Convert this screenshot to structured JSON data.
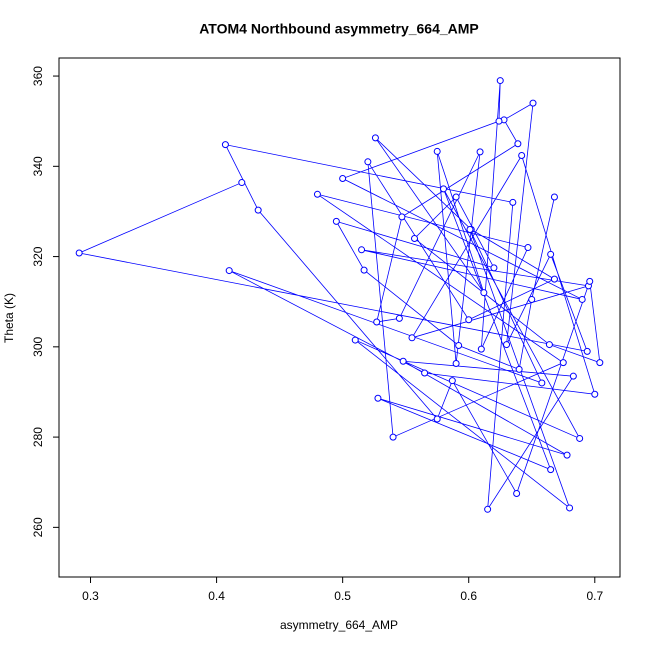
{
  "chart_data": {
    "type": "scatter",
    "connected": true,
    "title": "ATOM4 Northbound asymmetry_664_AMP",
    "xlabel": "asymmetry_664_AMP",
    "ylabel": "Theta (K)",
    "color": "#0000ff",
    "xlim": [
      0.275,
      0.72
    ],
    "ylim": [
      249,
      364
    ],
    "xticks": [
      0.3,
      0.4,
      0.5,
      0.6,
      0.7
    ],
    "yticks": [
      260,
      280,
      300,
      320,
      340,
      360
    ],
    "x": [
      0.42,
      0.291,
      0.694,
      0.665,
      0.63,
      0.651,
      0.628,
      0.639,
      0.547,
      0.527,
      0.545,
      0.609,
      0.59,
      0.575,
      0.612,
      0.526,
      0.602,
      0.668,
      0.6,
      0.52,
      0.54,
      0.675,
      0.48,
      0.647,
      0.61,
      0.625,
      0.624,
      0.5,
      0.69,
      0.515,
      0.695,
      0.555,
      0.642,
      0.7,
      0.565,
      0.41,
      0.658,
      0.601,
      0.68,
      0.51,
      0.688,
      0.58,
      0.665,
      0.528,
      0.678,
      0.548,
      0.683,
      0.615,
      0.635,
      0.407,
      0.433,
      0.575,
      0.587,
      0.638,
      0.696,
      0.704,
      0.664,
      0.557,
      0.59,
      0.62,
      0.495,
      0.517,
      0.592,
      0.64,
      0.65,
      0.668
    ],
    "values": [
      336.4,
      320.8,
      299.0,
      320.5,
      300.5,
      354.0,
      350.3,
      345.0,
      328.8,
      305.5,
      306.3,
      343.2,
      296.3,
      343.3,
      312.0,
      346.3,
      326.0,
      315.0,
      306.0,
      341.0,
      280.0,
      296.5,
      333.8,
      322.0,
      299.5,
      359.0,
      350.0,
      337.3,
      310.5,
      321.5,
      313.5,
      302.0,
      342.4,
      289.5,
      294.2,
      316.9,
      292.0,
      326.0,
      264.3,
      301.5,
      279.7,
      335.0,
      272.8,
      288.6,
      276.0,
      296.8,
      293.5,
      264.0,
      332.0,
      344.8,
      330.3,
      284.0,
      292.5,
      267.5,
      314.5,
      296.5,
      300.5,
      324.0,
      333.2,
      317.5,
      327.8,
      317.0,
      300.3,
      295.0,
      310.5,
      333.2
    ]
  }
}
